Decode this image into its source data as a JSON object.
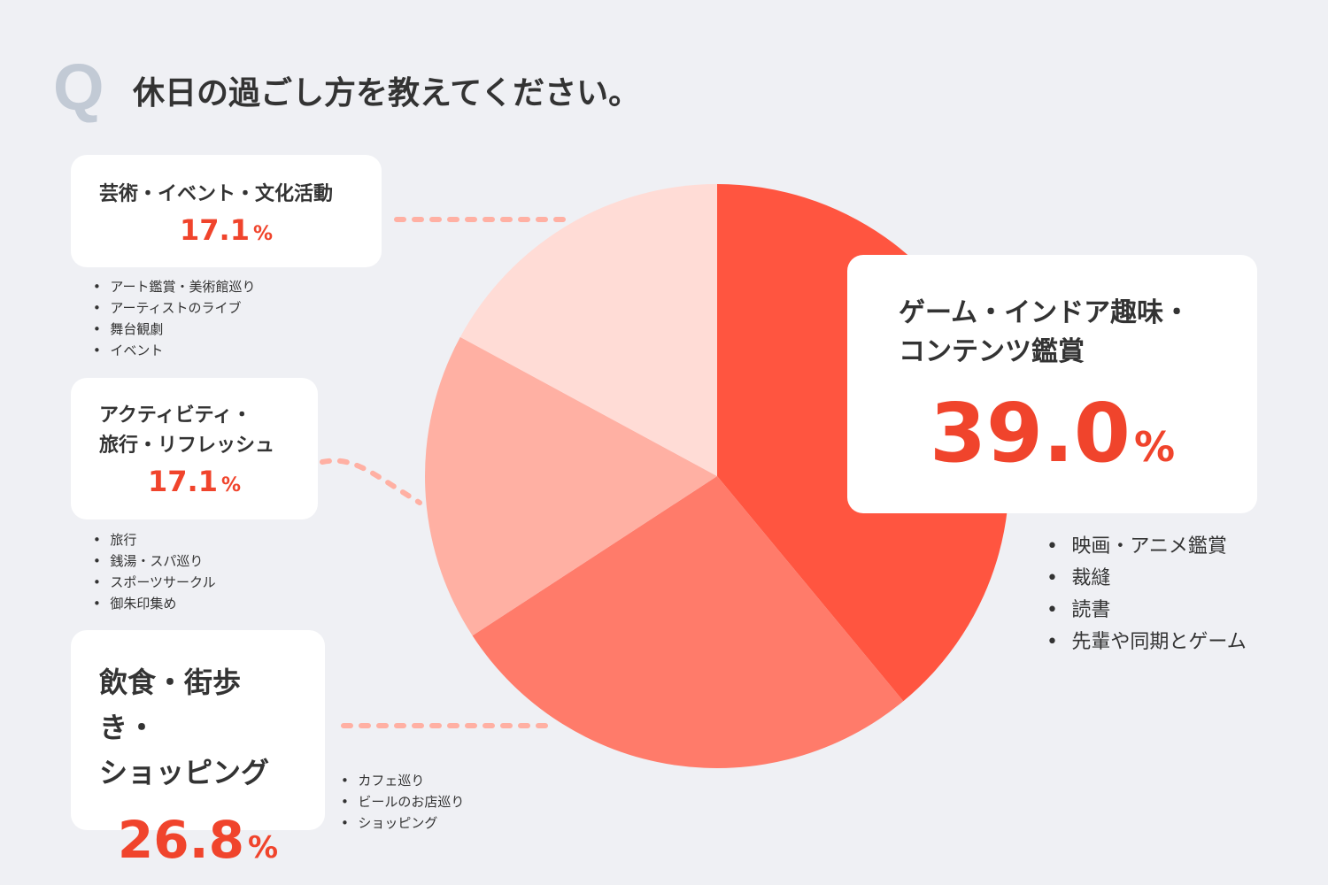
{
  "chart_data": {
    "type": "pie",
    "question_mark": "Q",
    "title": "休日の過ごし方を教えてください。",
    "categories": [
      "ゲーム・インドア趣味・\nコンテンツ鑑賞",
      "飲食・街歩き・\nショッピング",
      "アクティビティ・\n旅行・リフレッシュ",
      "芸術・イベント・文化活動"
    ],
    "values": [
      39.0,
      26.8,
      17.1,
      17.1
    ],
    "value_labels": [
      "39.0",
      "26.8",
      "17.1",
      "17.1"
    ],
    "unit": "%",
    "colors": [
      "#ff5540",
      "#ff7b6a",
      "#ffb0a3",
      "#ffdcd6"
    ],
    "details": [
      [
        "映画・アニメ鑑賞",
        "裁縫",
        "読書",
        "先輩や同期とゲーム"
      ],
      [
        "カフェ巡り",
        "ビールのお店巡り",
        "ショッピング"
      ],
      [
        "旅行",
        "銭湯・スパ巡り",
        "スポーツサークル",
        "御朱印集め"
      ],
      [
        "アート鑑賞・美術館巡り",
        "アーティストのライブ",
        "舞台観劇",
        "イベント"
      ]
    ]
  }
}
